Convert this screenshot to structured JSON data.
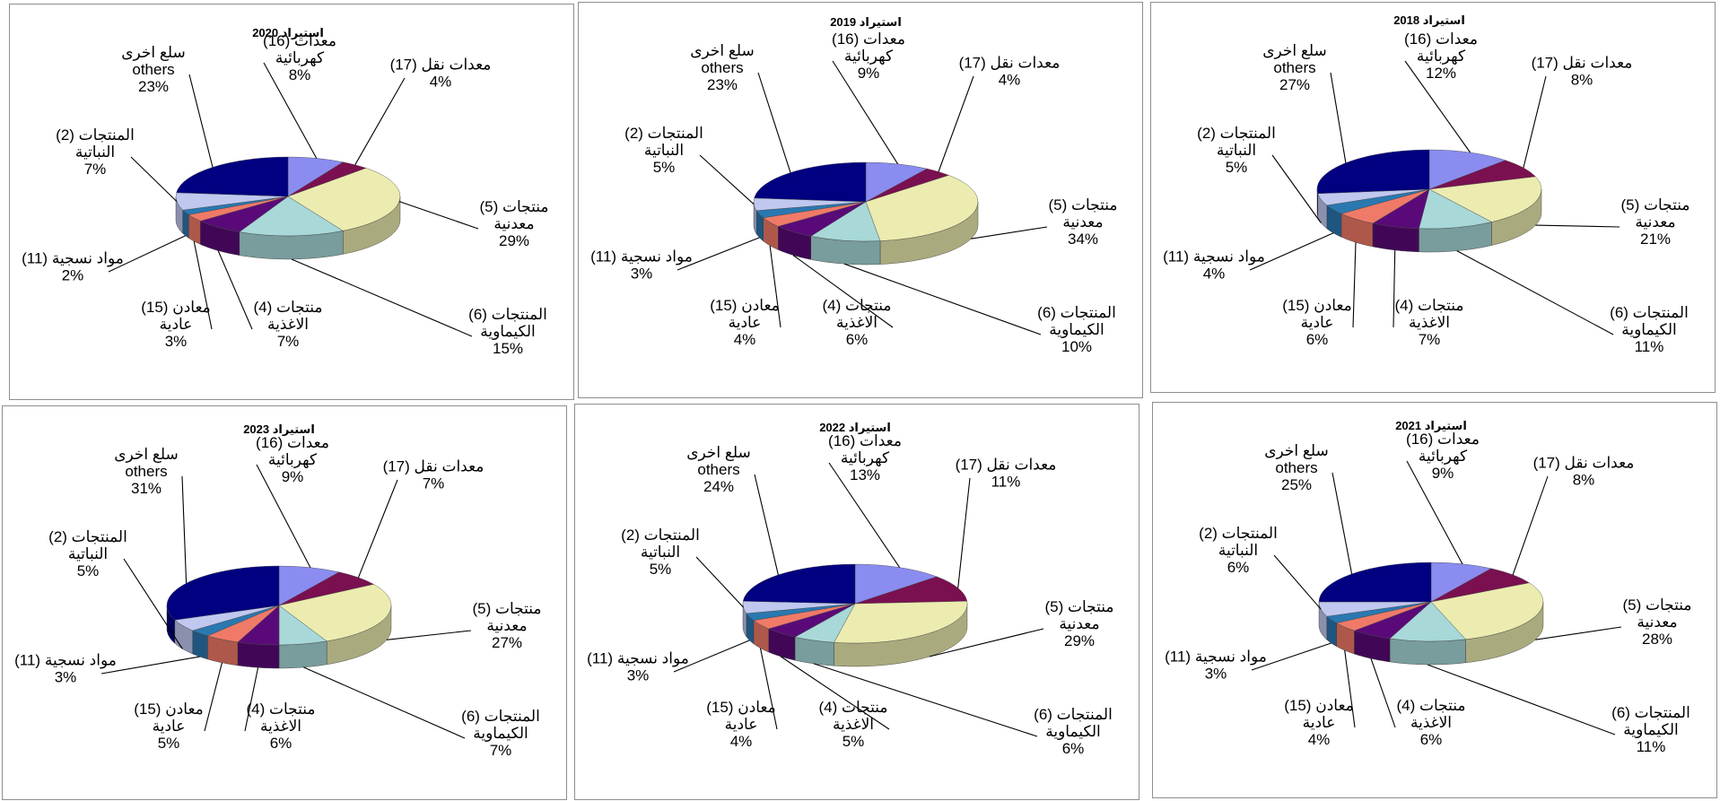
{
  "chart_data": [
    {
      "type": "pie",
      "title": "استيراد 2020",
      "categories": [
        {
          "name_lines": [
            "(16)  معدات",
            "كهربائية"
          ],
          "value": 8
        },
        {
          "name_lines": [
            "(17) معدات نقل"
          ],
          "value": 4
        },
        {
          "name_lines": [
            "(5) منتجات",
            "معدنية"
          ],
          "value": 29
        },
        {
          "name_lines": [
            "(6) المنتجات",
            "الكيماوية"
          ],
          "value": 15
        },
        {
          "name_lines": [
            "(4) منتجات",
            "الاغذية"
          ],
          "value": 7
        },
        {
          "name_lines": [
            "(15)  معادن",
            "عادية"
          ],
          "value": 3
        },
        {
          "name_lines": [
            "(11) مواد نسجية"
          ],
          "value": 2
        },
        {
          "name_lines": [
            "(2) المنتجات",
            "النباتية"
          ],
          "value": 7
        },
        {
          "name_lines": [
            "سلع اخرى",
            "others"
          ],
          "value": 23
        }
      ]
    },
    {
      "type": "pie",
      "title": "استيراد 2019",
      "categories": [
        {
          "name_lines": [
            "(16)  معدات",
            "كهربائية"
          ],
          "value": 9
        },
        {
          "name_lines": [
            "(17) معدات نقل"
          ],
          "value": 4
        },
        {
          "name_lines": [
            "(5)  منتجات",
            "معدنية"
          ],
          "value": 34
        },
        {
          "name_lines": [
            "(6)  المنتجات",
            "الكيماوية"
          ],
          "value": 10
        },
        {
          "name_lines": [
            "(4) منتجات",
            "الاغذية"
          ],
          "value": 6
        },
        {
          "name_lines": [
            "(15)  معادن",
            "عادية"
          ],
          "value": 4
        },
        {
          "name_lines": [
            "(11) مواد نسجية"
          ],
          "value": 3
        },
        {
          "name_lines": [
            "(2) المنتجات",
            "النباتية"
          ],
          "value": 5
        },
        {
          "name_lines": [
            "سلع اخرى",
            "others"
          ],
          "value": 23
        }
      ]
    },
    {
      "type": "pie",
      "title": "استيراد 2018",
      "categories": [
        {
          "name_lines": [
            "(16)  معدات",
            "كهربائية"
          ],
          "value": 12
        },
        {
          "name_lines": [
            "(17) معدات نقل"
          ],
          "value": 8
        },
        {
          "name_lines": [
            "(5) منتجات",
            "معدنية"
          ],
          "value": 21
        },
        {
          "name_lines": [
            "(6) المنتجات",
            "الكيماوية"
          ],
          "value": 11
        },
        {
          "name_lines": [
            "(4) منتجات",
            "الاغذية"
          ],
          "value": 7
        },
        {
          "name_lines": [
            "(15) معادن",
            "عادية"
          ],
          "value": 6
        },
        {
          "name_lines": [
            "(11) مواد نسجية"
          ],
          "value": 4
        },
        {
          "name_lines": [
            "(2) المنتجات",
            "النباتية"
          ],
          "value": 5
        },
        {
          "name_lines": [
            "سلع اخرى",
            "others"
          ],
          "value": 27
        }
      ]
    },
    {
      "type": "pie",
      "title": "استيراد  2023",
      "categories": [
        {
          "name_lines": [
            "(16)  معدات",
            "كهربائية"
          ],
          "value": 9
        },
        {
          "name_lines": [
            "(17) معدات نقل"
          ],
          "value": 7
        },
        {
          "name_lines": [
            "(5) منتجات",
            "معدنية"
          ],
          "value": 27
        },
        {
          "name_lines": [
            "(6) المنتجات",
            "الكيماوية"
          ],
          "value": 7
        },
        {
          "name_lines": [
            "(4) منتجات",
            "الاغذية"
          ],
          "value": 6
        },
        {
          "name_lines": [
            "(15) معادن",
            "عادية"
          ],
          "value": 5
        },
        {
          "name_lines": [
            "(11) مواد نسجية"
          ],
          "value": 3
        },
        {
          "name_lines": [
            "(2) المنتجات",
            "النباتية"
          ],
          "value": 5
        },
        {
          "name_lines": [
            "سلع اخرى",
            "others"
          ],
          "value": 31
        }
      ]
    },
    {
      "type": "pie",
      "title": "استيراد 2022",
      "categories": [
        {
          "name_lines": [
            "(16)  معدات",
            "كهربائية"
          ],
          "value": 13
        },
        {
          "name_lines": [
            "(17) معدات نقل"
          ],
          "value": 11
        },
        {
          "name_lines": [
            "(5) منتجات",
            "معدنية"
          ],
          "value": 29
        },
        {
          "name_lines": [
            "(6) المنتجات",
            "الكيماوية"
          ],
          "value": 6
        },
        {
          "name_lines": [
            "(4) منتجات",
            "الاغذية"
          ],
          "value": 5
        },
        {
          "name_lines": [
            "(15) معادن",
            "عادية"
          ],
          "value": 4
        },
        {
          "name_lines": [
            "(11) مواد نسجية"
          ],
          "value": 3
        },
        {
          "name_lines": [
            "(2) المنتجات",
            "النباتية"
          ],
          "value": 5
        },
        {
          "name_lines": [
            "سلع اخرى",
            "others"
          ],
          "value": 24
        }
      ]
    },
    {
      "type": "pie",
      "title": "استيراد 2021",
      "categories": [
        {
          "name_lines": [
            "(16)  معدات",
            "كهربائية"
          ],
          "value": 9
        },
        {
          "name_lines": [
            "(17) معدات نقل"
          ],
          "value": 8
        },
        {
          "name_lines": [
            "(5) منتجات",
            "معدنية"
          ],
          "value": 28
        },
        {
          "name_lines": [
            "(6) المنتجات",
            "الكيماوية"
          ],
          "value": 11
        },
        {
          "name_lines": [
            "(4) منتجات",
            "الاغذية"
          ],
          "value": 6
        },
        {
          "name_lines": [
            "(15) معادن",
            "عادية"
          ],
          "value": 4
        },
        {
          "name_lines": [
            "(11) مواد نسجية"
          ],
          "value": 3
        },
        {
          "name_lines": [
            "(2) المنتجات",
            "النباتية"
          ],
          "value": 6
        },
        {
          "name_lines": [
            "سلع اخرى",
            "others"
          ],
          "value": 25
        }
      ]
    }
  ],
  "slice_colors": [
    "#8a8cf0",
    "#7a1050",
    "#ececb0",
    "#a8d8d8",
    "#5a0a78",
    "#f07a68",
    "#2a78b0",
    "#c0c8f0",
    "#000080"
  ]
}
